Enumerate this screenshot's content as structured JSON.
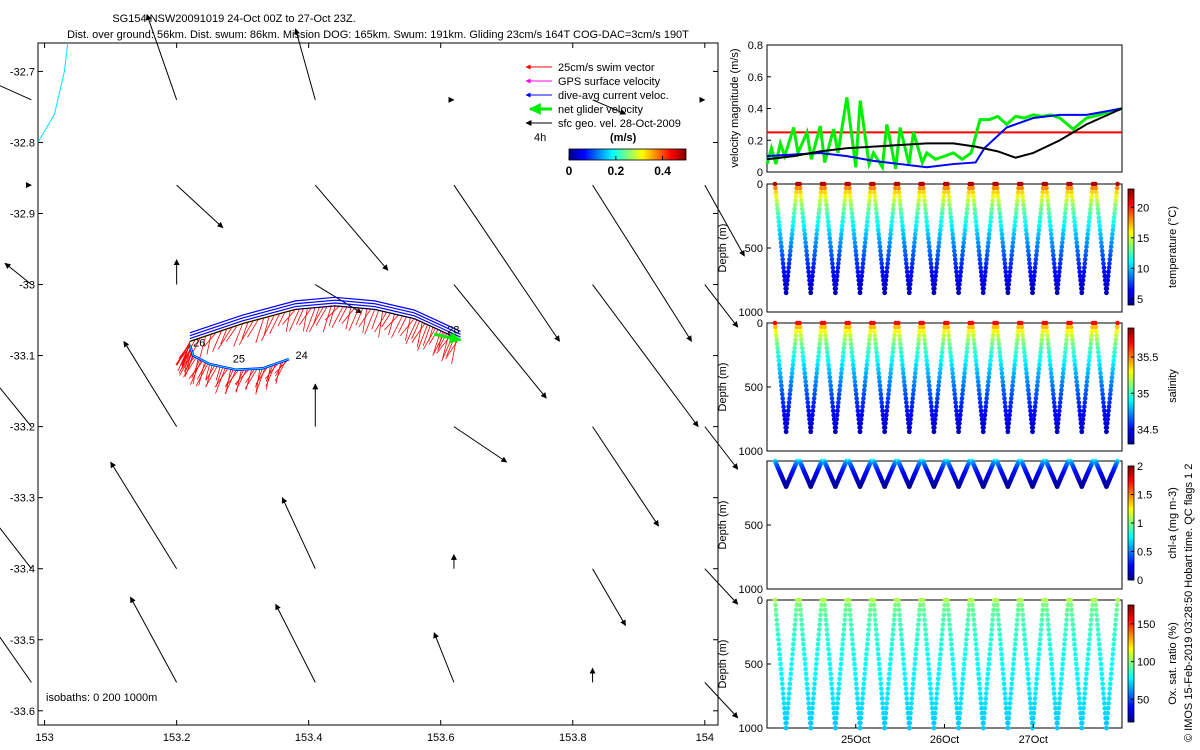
{
  "header": {
    "title_line1": "SG154 NSW20091019 24-Oct 00Z to 27-Oct 23Z.",
    "title_line2": "Dist. over ground: 56km. Dist. swum: 86km. Mission DOG: 165km. Swum: 191km. Gliding 23cm/s 164T COG-DAC=3cm/s 190T"
  },
  "footer": {
    "credit": "© IMOS 15-Feb-2019 03:28:50 Hobart time. QC flags 1  2"
  },
  "colors": {
    "swim": "#ff0000",
    "gps": "#ff00ff",
    "dac": "#0000ff",
    "net": "#00ee00",
    "geo": "#000000",
    "coast": "#00e5ff",
    "threshold": "#ff0000"
  },
  "chart_data": [
    {
      "type": "scatter",
      "id": "map",
      "title": "Glider track map",
      "x_ticks": [
        "153",
        "153.2",
        "153.4",
        "153.6",
        "153.8",
        "154"
      ],
      "x_tick_values": [
        153.0,
        153.2,
        153.4,
        153.6,
        153.8,
        154.0
      ],
      "y_ticks": [
        "-32.7",
        "-32.8",
        "-32.9",
        "-33",
        "-33.1",
        "-33.2",
        "-33.3",
        "-33.4",
        "-33.5",
        "-33.6"
      ],
      "y_tick_values": [
        -32.7,
        -32.8,
        -32.9,
        -33.0,
        -33.1,
        -33.2,
        -33.3,
        -33.4,
        -33.5,
        -33.6
      ],
      "xlim": [
        152.99,
        154.02
      ],
      "ylim": [
        -33.62,
        -32.66
      ],
      "legend": {
        "position": "top-right",
        "entries": [
          "25cm/s swim vector",
          "GPS surface velocity",
          "dive-avg current veloc.",
          "net glider velocity",
          "sfc geo. vel. 28-Oct-2009"
        ],
        "time_label": "4h",
        "colorbar_label": "(m/s)",
        "colorbar_ticks": [
          "0",
          "0.2",
          "0.4"
        ],
        "colorbar_range": [
          0,
          0.5
        ]
      },
      "isobaths_label": "isobaths: 0   200  1000m",
      "day_labels": [
        {
          "text": "24",
          "lon": 153.38,
          "lat": -33.105
        },
        {
          "text": "25",
          "lon": 153.285,
          "lat": -33.11
        },
        {
          "text": "26",
          "lon": 153.225,
          "lat": -33.087
        },
        {
          "text": "28",
          "lon": 153.61,
          "lat": -33.069
        }
      ],
      "track_lower": [
        [
          153.37,
          -33.105
        ],
        [
          153.33,
          -33.118
        ],
        [
          153.29,
          -33.12
        ],
        [
          153.25,
          -33.112
        ],
        [
          153.225,
          -33.1
        ],
        [
          153.22,
          -33.085
        ]
      ],
      "track_upper": [
        [
          153.22,
          -33.08
        ],
        [
          153.3,
          -33.055
        ],
        [
          153.38,
          -33.035
        ],
        [
          153.44,
          -33.03
        ],
        [
          153.5,
          -33.035
        ],
        [
          153.56,
          -33.048
        ],
        [
          153.6,
          -33.065
        ],
        [
          153.63,
          -33.078
        ]
      ],
      "coastline": [
        [
          152.99,
          -32.8
        ],
        [
          153.015,
          -32.76
        ],
        [
          153.03,
          -32.7
        ],
        [
          153.035,
          -32.66
        ]
      ],
      "geo_grid_lons": [
        152.98,
        153.2,
        153.41,
        153.62,
        153.83,
        154.0
      ],
      "geo_grid_lats": [
        -32.74,
        -32.86,
        -33.0,
        -33.2,
        -33.4,
        -33.56
      ],
      "geo_vectors": [
        [
          [
            -0.06,
            0.025,
            0.32
          ],
          [
            -0.045,
            0.12,
            0.1
          ],
          [
            -0.03,
            0.1,
            0.1
          ],
          [
            0.0,
            0.0,
            0.05
          ],
          [
            0.05,
            -0.02,
            0.05
          ],
          [
            0.0,
            0.0,
            0.05
          ]
        ],
        [
          [
            0.0,
            0.0,
            0.02
          ],
          [
            0.07,
            -0.06,
            0.08
          ],
          [
            0.11,
            -0.12,
            0.2
          ],
          [
            0.16,
            -0.22,
            0.28
          ],
          [
            0.15,
            -0.22,
            0.3
          ],
          [
            0.06,
            -0.1,
            0.2
          ]
        ],
        [
          [
            -0.04,
            0.03,
            0.04
          ],
          [
            0.0,
            0.035,
            0.02
          ],
          [
            0.07,
            -0.04,
            0.08
          ],
          [
            0.14,
            -0.16,
            0.3
          ],
          [
            0.16,
            -0.2,
            0.34
          ],
          [
            0.05,
            -0.06,
            0.15
          ]
        ],
        [
          [
            -0.07,
            0.08,
            0.12
          ],
          [
            -0.08,
            0.12,
            0.15
          ],
          [
            0.0,
            0.06,
            0.02
          ],
          [
            0.08,
            -0.05,
            0.15
          ],
          [
            0.1,
            -0.14,
            0.25
          ],
          [
            0.05,
            -0.06,
            0.1
          ]
        ],
        [
          [
            -0.1,
            0.12,
            0.15
          ],
          [
            -0.1,
            0.15,
            0.15
          ],
          [
            -0.05,
            0.1,
            0.08
          ],
          [
            0.0,
            0.02,
            0.02
          ],
          [
            0.05,
            -0.08,
            0.1
          ],
          [
            0.05,
            -0.05,
            0.1
          ]
        ],
        [
          [
            -0.06,
            0.08,
            0.12
          ],
          [
            -0.07,
            0.12,
            0.12
          ],
          [
            -0.06,
            0.11,
            0.1
          ],
          [
            -0.03,
            0.07,
            0.05
          ],
          [
            0.0,
            0.02,
            0.02
          ],
          [
            0.05,
            -0.05,
            0.1
          ]
        ]
      ]
    },
    {
      "type": "line",
      "id": "velocity",
      "ylabel": "velocity magnitude (m/s)",
      "ylim": [
        0,
        0.8
      ],
      "y_ticks": [
        "0",
        "0.2",
        "0.4",
        "0.6",
        "0.8"
      ],
      "y_tick_values": [
        0,
        0.2,
        0.4,
        0.6,
        0.8
      ],
      "xlim": [
        0,
        4
      ],
      "threshold": 0.25,
      "series": [
        {
          "name": "net glider velocity (green)",
          "x": [
            0.0,
            0.05,
            0.1,
            0.15,
            0.2,
            0.3,
            0.35,
            0.45,
            0.5,
            0.6,
            0.65,
            0.75,
            0.8,
            0.9,
            1.0,
            1.05,
            1.15,
            1.2,
            1.3,
            1.35,
            1.45,
            1.5,
            1.6,
            1.65,
            1.75,
            1.8,
            1.9,
            2.0,
            2.1,
            2.2,
            2.3,
            2.4,
            2.5,
            2.6,
            2.7,
            2.8,
            2.9,
            3.0,
            3.1,
            3.2,
            3.3,
            3.45,
            3.6,
            3.75,
            3.85,
            4.0
          ],
          "y": [
            0.05,
            0.15,
            0.05,
            0.18,
            0.1,
            0.28,
            0.12,
            0.25,
            0.08,
            0.29,
            0.06,
            0.27,
            0.12,
            0.47,
            0.03,
            0.45,
            0.05,
            0.12,
            0.03,
            0.3,
            0.02,
            0.28,
            0.05,
            0.25,
            0.06,
            0.12,
            0.08,
            0.1,
            0.12,
            0.08,
            0.12,
            0.33,
            0.33,
            0.35,
            0.3,
            0.35,
            0.34,
            0.36,
            0.35,
            0.36,
            0.34,
            0.27,
            0.34,
            0.36,
            0.38,
            0.4
          ]
        },
        {
          "name": "dive-avg current velocity (blue)",
          "x": [
            0.0,
            0.3,
            0.6,
            0.9,
            1.2,
            1.5,
            1.8,
            2.1,
            2.35,
            2.45,
            2.7,
            3.0,
            3.3,
            3.6,
            4.0
          ],
          "y": [
            0.1,
            0.11,
            0.12,
            0.1,
            0.07,
            0.05,
            0.03,
            0.05,
            0.06,
            0.15,
            0.28,
            0.34,
            0.36,
            0.36,
            0.4
          ]
        },
        {
          "name": "surface geostrophic velocity (black)",
          "x": [
            0.0,
            0.3,
            0.6,
            0.9,
            1.2,
            1.5,
            1.8,
            2.1,
            2.35,
            2.6,
            2.8,
            3.0,
            3.3,
            3.6,
            4.0
          ],
          "y": [
            0.08,
            0.1,
            0.13,
            0.15,
            0.16,
            0.17,
            0.18,
            0.18,
            0.16,
            0.13,
            0.09,
            0.12,
            0.2,
            0.3,
            0.4
          ]
        }
      ]
    },
    {
      "type": "scatter",
      "id": "temperature",
      "ylabel": "Depth (m)",
      "colorbar_label": "temperature (°C)",
      "color_ticks": [
        "5",
        "10",
        "15",
        "20"
      ],
      "color_tick_values": [
        5,
        10,
        15,
        20
      ],
      "color_range": [
        4,
        23
      ],
      "ylim": [
        1000,
        0
      ],
      "y_ticks": [
        "0",
        "500",
        "1000"
      ],
      "y_tick_values": [
        0,
        500,
        1000
      ],
      "profiles": 14,
      "max_depth": 850,
      "bottom_value": 5,
      "surface_value": 22
    },
    {
      "type": "scatter",
      "id": "salinity",
      "ylabel": "Depth (m)",
      "colorbar_label": "salinity",
      "color_ticks": [
        "34.5",
        "35",
        "35.5"
      ],
      "color_tick_values": [
        34.5,
        35.0,
        35.5
      ],
      "color_range": [
        34.3,
        35.9
      ],
      "ylim": [
        1000,
        0
      ],
      "y_ticks": [
        "0",
        "500",
        "1000"
      ],
      "y_tick_values": [
        0,
        500,
        1000
      ],
      "profiles": 14,
      "max_depth": 850,
      "bottom_value": 34.4,
      "surface_value": 35.7
    },
    {
      "type": "scatter",
      "id": "chla",
      "ylabel": "Depth (m)",
      "colorbar_label": "chl-a (mg m-3)",
      "color_ticks": [
        "0",
        "0.5",
        "1",
        "1.5",
        "2"
      ],
      "color_tick_values": [
        0,
        0.5,
        1.0,
        1.5,
        2.0
      ],
      "color_range": [
        0,
        2
      ],
      "ylim": [
        1000,
        0
      ],
      "y_ticks": [
        "500",
        "1000"
      ],
      "y_tick_values": [
        500,
        1000
      ],
      "profiles": 14,
      "max_depth": 200,
      "bottom_value": 0.05,
      "surface_value": 0.8
    },
    {
      "type": "scatter",
      "id": "oxygen",
      "ylabel": "Depth (m)",
      "colorbar_label": "Ox. sat. ratio (%)",
      "color_ticks": [
        "50",
        "100",
        "150"
      ],
      "color_tick_values": [
        50,
        100,
        150
      ],
      "color_range": [
        20,
        175
      ],
      "ylim": [
        1000,
        0
      ],
      "y_ticks": [
        "0",
        "500",
        "1000"
      ],
      "y_tick_values": [
        0,
        500,
        1000
      ],
      "profiles": 14,
      "max_depth": 1000,
      "bottom_value": 70,
      "surface_value": 105,
      "x_ticks": [
        "25Oct",
        "26Oct",
        "27Oct"
      ],
      "x_tick_values": [
        1,
        2,
        3
      ],
      "xlim": [
        0,
        4
      ]
    }
  ]
}
